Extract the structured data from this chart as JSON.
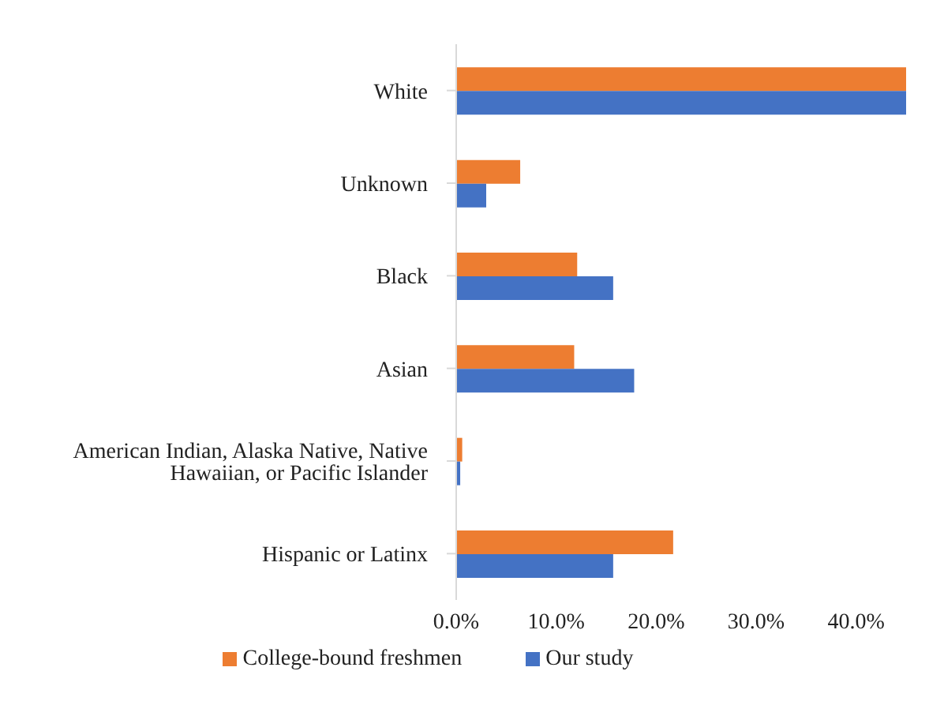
{
  "chart_data": {
    "type": "bar",
    "orientation": "horizontal",
    "categories": [
      "White",
      "Unknown",
      "Black",
      "Asian",
      "American Indian, Alaska Native, Native Hawaiian, or Pacific Islander",
      "Hispanic or Latinx"
    ],
    "series": [
      {
        "name": "College-bound freshmen",
        "color": "#ed7d31",
        "values": [
          45.0,
          6.4,
          12.1,
          11.8,
          0.6,
          21.7
        ]
      },
      {
        "name": "Our study",
        "color": "#4472c4",
        "values": [
          45.0,
          3.0,
          15.7,
          17.8,
          0.4,
          15.7
        ]
      }
    ],
    "xlim": [
      0,
      45
    ],
    "xticks": [
      {
        "value": 0,
        "label": "0.0%"
      },
      {
        "value": 10,
        "label": "10.0%"
      },
      {
        "value": 20,
        "label": "20.0%"
      },
      {
        "value": 30,
        "label": "30.0%"
      },
      {
        "value": 40,
        "label": "40.0%"
      }
    ],
    "grid": false,
    "legend": "bottom"
  }
}
